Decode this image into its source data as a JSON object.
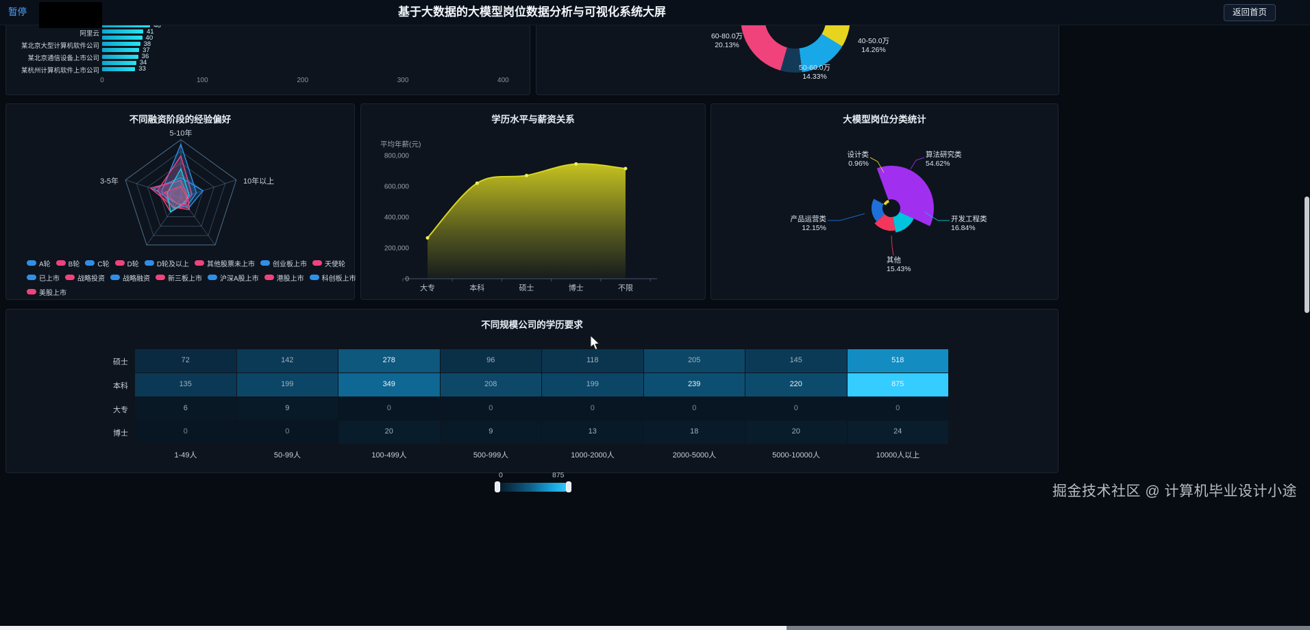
{
  "header": {
    "pause": "暂停",
    "title": "基于大数据的大模型岗位数据分析与可视化系统大屏",
    "back": "返回首页"
  },
  "watermark": "掘金技术社区 @ 计算机毕业设计小途",
  "chart_data": [
    {
      "type": "bar",
      "orientation": "horizontal",
      "categories": [
        "",
        "阿里云",
        "",
        "某北京大型计算机软件公司",
        "",
        "某北京通信设备上市公司",
        "",
        "某杭州计算机软件上市公司"
      ],
      "values": [
        48,
        41,
        40,
        38,
        37,
        36,
        34,
        33
      ],
      "xlim": [
        0,
        400
      ],
      "x_ticks": [
        0,
        100,
        200,
        300,
        400
      ],
      "bar_color": "#1ed0e0"
    },
    {
      "type": "pie",
      "subtype": "donut",
      "slices": [
        {
          "label": "60-80.0万",
          "pct": 20.13,
          "color": "#f0437c"
        },
        {
          "label": "40-50.0万",
          "pct": 14.26,
          "color": "#e6d41f"
        },
        {
          "label": "50-60.0万",
          "pct": 14.33,
          "color": "#18a8e8"
        }
      ],
      "unlabeled_colors": [
        "#0d2b47",
        "#143a5a",
        "#15596b"
      ]
    },
    {
      "type": "radar",
      "title": "不同融资阶段的经验偏好",
      "axes": [
        "5-10年",
        "10年以上",
        "",
        "",
        "3-5年"
      ],
      "series": [
        "A轮",
        "B轮",
        "C轮",
        "D轮",
        "D轮及以上",
        "其他股票未上市",
        "创业板上市",
        "天使轮",
        "已上市",
        "战略投资",
        "战略融资",
        "新三板上市",
        "沪深A股上市",
        "港股上市",
        "科创板上市",
        "美股上市"
      ],
      "legend_colors": [
        "#2f8fe8",
        "#f0437c"
      ]
    },
    {
      "type": "area",
      "title": "学历水平与薪资关系",
      "ylabel": "平均年薪(元)",
      "categories": [
        "大专",
        "本科",
        "硕士",
        "博士",
        "不限"
      ],
      "values": [
        265000,
        620000,
        670000,
        745000,
        715000
      ],
      "ylim": [
        0,
        800000
      ],
      "y_ticks": [
        0,
        200000,
        400000,
        600000,
        800000
      ],
      "color": "#d9d520"
    },
    {
      "type": "pie",
      "subtype": "rose",
      "title": "大模型岗位分类统计",
      "slices": [
        {
          "label": "算法研究类",
          "pct": 54.62,
          "color": "#a02ff0"
        },
        {
          "label": "开发工程类",
          "pct": 16.84,
          "color": "#00c3dd"
        },
        {
          "label": "其他",
          "pct": 15.43,
          "color": "#f5365c"
        },
        {
          "label": "产品运营类",
          "pct": 12.15,
          "color": "#1f6fd9"
        },
        {
          "label": "设计类",
          "pct": 0.96,
          "color": "#e6d41f"
        }
      ]
    },
    {
      "type": "heatmap",
      "title": "不同规模公司的学历要求",
      "x_categories": [
        "1-49人",
        "50-99人",
        "100-499人",
        "500-999人",
        "1000-2000人",
        "2000-5000人",
        "5000-10000人",
        "10000人以上"
      ],
      "y_categories": [
        "硕士",
        "本科",
        "大专",
        "博士"
      ],
      "rows": [
        [
          72,
          142,
          278,
          96,
          118,
          205,
          145,
          518
        ],
        [
          135,
          199,
          349,
          208,
          199,
          239,
          220,
          875
        ],
        [
          6,
          9,
          0,
          0,
          0,
          0,
          0,
          0
        ],
        [
          0,
          0,
          20,
          9,
          13,
          18,
          20,
          24
        ]
      ],
      "visual_map": {
        "min": 0,
        "max": 875
      }
    }
  ]
}
